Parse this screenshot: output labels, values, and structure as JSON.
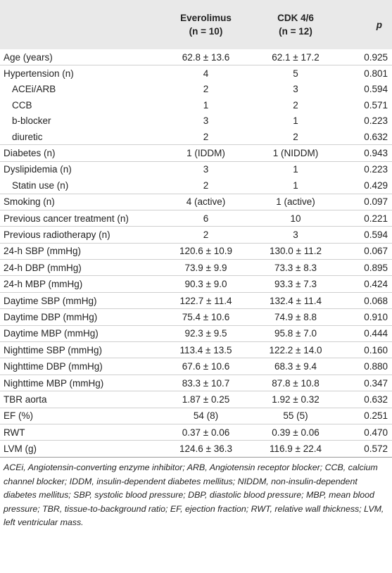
{
  "table": {
    "header": [
      [],
      [
        "Everolimus",
        "(n = 10)"
      ],
      [
        "CDK 4/6",
        "(n = 12)"
      ],
      [
        "p"
      ]
    ],
    "rows": [
      [
        "Age (years)",
        "62.8 ± 13.6",
        "62.1 ± 17.2",
        "0.925"
      ],
      [
        "Hypertension (n)",
        "4",
        "5",
        "0.801"
      ],
      [
        "ACEi/ARB",
        "2",
        "3",
        "0.594"
      ],
      [
        "CCB",
        "1",
        "2",
        "0.571"
      ],
      [
        "b-blocker",
        "3",
        "1",
        "0.223"
      ],
      [
        "diuretic",
        "2",
        "2",
        "0.632"
      ],
      [
        "Diabetes (n)",
        "1 (IDDM)",
        "1 (NIDDM)",
        "0.943"
      ],
      [
        "Dyslipidemia (n)",
        "3",
        "1",
        "0.223"
      ],
      [
        "Statin use  (n)",
        "2",
        "1",
        "0.429"
      ],
      [
        "Smoking (n)",
        "4 (active)",
        "1 (active)",
        "0.097"
      ],
      [
        "Previous cancer treatment (n)",
        "6",
        "10",
        "0.221"
      ],
      [
        "Previous radiotherapy (n)",
        "2",
        "3",
        "0.594"
      ],
      [
        "24-h SBP (mmHg)",
        "120.6 ± 10.9",
        "130.0 ± 11.2",
        "0.067"
      ],
      [
        "24-h DBP (mmHg)",
        "73.9 ± 9.9",
        "73.3 ± 8.3",
        "0.895"
      ],
      [
        "24-h MBP (mmHg)",
        "90.3 ± 9.0",
        "93.3 ± 7.3",
        "0.424"
      ],
      [
        "Daytime SBP (mmHg)",
        "122.7 ± 11.4",
        "132.4 ± 11.4",
        "0.068"
      ],
      [
        "Daytime DBP (mmHg)",
        "75.4 ± 10.6",
        "74.9 ± 8.8",
        "0.910"
      ],
      [
        "Daytime MBP (mmHg)",
        "92.3 ± 9.5",
        "95.8 ± 7.0",
        "0.444"
      ],
      [
        "Nighttime SBP (mmHg)",
        "113.4 ± 13.5",
        "122.2 ± 14.0",
        "0.160"
      ],
      [
        "Nighttime DBP (mmHg)",
        "67.6 ± 10.6",
        "68.3 ± 9.4",
        "0.880"
      ],
      [
        "Nighttime MBP (mmHg)",
        "83.3 ± 10.7",
        "87.8 ± 10.8",
        "0.347"
      ],
      [
        "TBR aorta",
        "1.87 ± 0.25",
        "1.92 ± 0.32",
        "0.632"
      ],
      [
        "EF (%)",
        "54 (8)",
        "55 (5)",
        "0.251"
      ],
      [
        "RWT",
        "0.37 ± 0.06",
        "0.39 ± 0.06",
        "0.470"
      ],
      [
        "LVM (g)",
        "124.6 ± 36.3",
        "116.9 ± 22.4",
        "0.572"
      ]
    ]
  },
  "footnote": "ACEi, Angiotensin-converting enzyme inhibitor; ARB, Angiotensin receptor blocker; CCB, calcium channel blocker; IDDM, insulin-dependent diabetes mellitus; NIDDM, non-insulin-dependent diabetes mellitus; SBP, systolic blood pressure; DBP, diastolic blood pressure; MBP, mean blood pressure; TBR, tissue-to-background ratio; EF, ejection fraction; RWT, relative wall thickness; LVM, left ventricular mass."
}
